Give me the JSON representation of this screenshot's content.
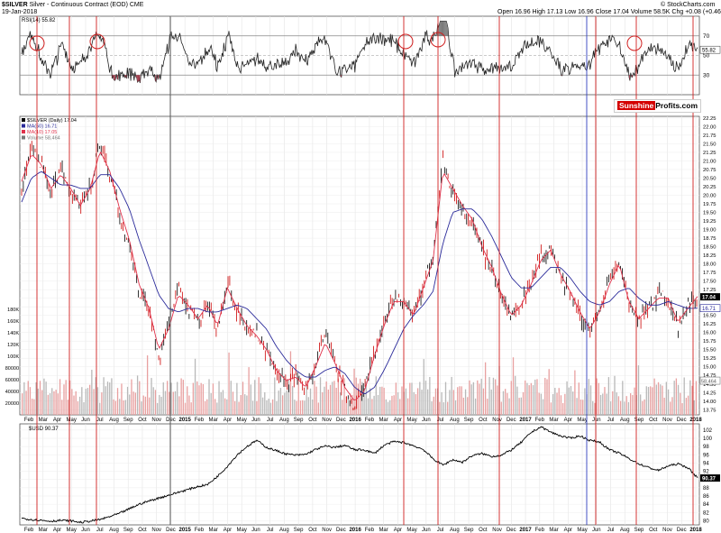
{
  "header": {
    "symbol": "$SILVER",
    "description": "Silver - Continuous Contract (EOD) CME",
    "date": "19-Jan-2018",
    "ohlc": "Open 16.96  High 17.13  Low 16.96  Close 17.04  Volume 58.5K  Chg +0.08 (+0.46%)",
    "source": "© StockCharts.com",
    "logo_a": "Sunshine",
    "logo_b": "Profits.com"
  },
  "chart_data": [
    {
      "type": "line",
      "panel": "rsi",
      "legend": "RSI(14) 55.82",
      "y_ticks": [
        30,
        50,
        70
      ],
      "ylim": [
        10,
        90
      ],
      "last_value_label": "55.82",
      "overbought": 70,
      "oversold": 30
    },
    {
      "type": "line",
      "panel": "price",
      "legend": [
        "$SILVER (Daily) 17.04",
        "MA(50) 16.71",
        "MA(10) 17.05",
        "Volume 58,464"
      ],
      "x_labels": [
        "Feb",
        "Mar",
        "Apr",
        "May",
        "Jun",
        "Jul",
        "Aug",
        "Sep",
        "Oct",
        "Nov",
        "Dec",
        "2015",
        "Feb",
        "Mar",
        "Apr",
        "May",
        "Jun",
        "Jul",
        "Aug",
        "Sep",
        "Oct",
        "Nov",
        "Dec",
        "2016",
        "Feb",
        "Mar",
        "Apr",
        "May",
        "Jun",
        "Jul",
        "Aug",
        "Sep",
        "Oct",
        "Nov",
        "Dec",
        "2017",
        "Feb",
        "Mar",
        "Apr",
        "May",
        "Jun",
        "Jul",
        "Aug",
        "Sep",
        "Oct",
        "Nov",
        "Dec",
        "2018"
      ],
      "y_ticks": [
        13.75,
        14.0,
        14.25,
        14.5,
        14.75,
        15.0,
        15.25,
        15.5,
        15.75,
        16.0,
        16.25,
        16.5,
        16.75,
        17.0,
        17.25,
        17.5,
        17.75,
        18.0,
        18.25,
        18.5,
        18.75,
        19.0,
        19.25,
        19.5,
        19.75,
        20.0,
        20.25,
        20.5,
        20.75,
        21.0,
        21.25,
        21.5,
        21.75,
        22.0,
        22.25
      ],
      "ylim": [
        13.6,
        22.3
      ],
      "price_label": "17.04",
      "ma50_label": "16.71",
      "series": [
        {
          "name": "$SILVER (Daily)",
          "values": [
            20.2,
            21.4,
            20.9,
            20.0,
            20.8,
            20.1,
            19.6,
            20.3,
            21.5,
            20.6,
            19.4,
            18.6,
            17.2,
            16.6,
            15.2,
            16.2,
            17.3,
            16.7,
            16.3,
            16.9,
            16.1,
            17.5,
            16.6,
            16.1,
            15.9,
            15.4,
            14.8,
            14.5,
            14.8,
            14.3,
            15.1,
            15.9,
            15.0,
            14.3,
            13.9,
            14.3,
            15.5,
            16.3,
            17.0,
            16.9,
            16.4,
            17.4,
            18.2,
            21.0,
            20.1,
            19.6,
            19.2,
            18.4,
            17.8,
            17.0,
            16.4,
            16.8,
            17.5,
            18.2,
            18.5,
            17.6,
            17.1,
            16.5,
            16.0,
            16.7,
            17.5,
            18.2,
            16.8,
            16.3,
            16.7,
            17.1,
            17.0,
            16.2,
            16.8,
            17.04
          ]
        },
        {
          "name": "MA(50)",
          "values": [
            19.8,
            20.5,
            20.7,
            20.5,
            20.3,
            20.3,
            20.2,
            20.2,
            20.6,
            20.6,
            20.2,
            19.6,
            18.7,
            17.9,
            17.1,
            16.7,
            16.6,
            16.7,
            16.7,
            16.6,
            16.6,
            16.7,
            16.8,
            16.7,
            16.4,
            16.1,
            15.6,
            15.2,
            14.9,
            14.7,
            14.7,
            14.9,
            15.0,
            14.8,
            14.4,
            14.2,
            14.4,
            14.9,
            15.5,
            16.1,
            16.5,
            16.8,
            17.2,
            18.6,
            19.5,
            19.6,
            19.6,
            19.3,
            18.8,
            18.2,
            17.6,
            17.3,
            17.3,
            17.6,
            17.9,
            17.9,
            17.6,
            17.2,
            16.9,
            16.8,
            16.9,
            17.2,
            17.3,
            17.0,
            16.8,
            16.8,
            16.9,
            16.8,
            16.7,
            16.71
          ]
        },
        {
          "name": "MA(10)",
          "values": [
            20.4,
            21.2,
            20.9,
            20.2,
            20.6,
            20.2,
            19.7,
            20.2,
            21.3,
            20.7,
            19.6,
            18.7,
            17.4,
            16.7,
            15.5,
            16.1,
            17.1,
            16.8,
            16.4,
            16.8,
            16.2,
            17.3,
            16.7,
            16.2,
            15.9,
            15.5,
            14.9,
            14.6,
            14.7,
            14.4,
            15.0,
            15.7,
            15.1,
            14.4,
            14.0,
            14.3,
            15.3,
            16.2,
            16.9,
            16.9,
            16.5,
            17.3,
            18.1,
            20.7,
            20.2,
            19.7,
            19.3,
            18.5,
            17.9,
            17.1,
            16.5,
            16.8,
            17.4,
            18.1,
            18.4,
            17.7,
            17.2,
            16.6,
            16.1,
            16.6,
            17.4,
            18.0,
            16.9,
            16.4,
            16.7,
            17.0,
            17.0,
            16.3,
            16.7,
            17.05
          ]
        }
      ]
    },
    {
      "type": "bar",
      "panel": "volume",
      "y_ticks": [
        "20000",
        "40000",
        "60000",
        "80000",
        "100K",
        "120K",
        "140K",
        "160K",
        "180K"
      ],
      "ylim": [
        0,
        185000
      ],
      "last_value_label": "58,464"
    },
    {
      "type": "line",
      "panel": "usd",
      "legend": "$USD 90.37",
      "y_ticks": [
        80,
        82,
        84,
        86,
        88,
        90,
        92,
        94,
        96,
        98,
        100,
        102
      ],
      "ylim": [
        79,
        103.5
      ],
      "last_value_label": "90.37",
      "series": [
        {
          "name": "$USD",
          "values": [
            80.6,
            80.3,
            80.1,
            79.9,
            80.1,
            80.0,
            79.6,
            79.9,
            80.3,
            81.0,
            81.8,
            82.9,
            84.0,
            84.8,
            85.5,
            86.2,
            86.9,
            87.6,
            88.3,
            88.8,
            90.8,
            93.2,
            96.0,
            98.0,
            99.5,
            97.8,
            97.0,
            96.2,
            95.9,
            96.1,
            97.3,
            98.1,
            97.8,
            98.3,
            97.2,
            97.2,
            96.3,
            98.3,
            99.2,
            99.0,
            98.2,
            97.3,
            95.0,
            93.5,
            94.8,
            94.2,
            95.8,
            96.3,
            95.6,
            95.9,
            97.2,
            99.0,
            101.4,
            102.8,
            101.5,
            100.6,
            100.0,
            100.6,
            99.5,
            99.1,
            97.2,
            96.4,
            95.1,
            93.8,
            92.9,
            92.2,
            93.3,
            93.8,
            92.9,
            90.37
          ]
        }
      ]
    }
  ]
}
